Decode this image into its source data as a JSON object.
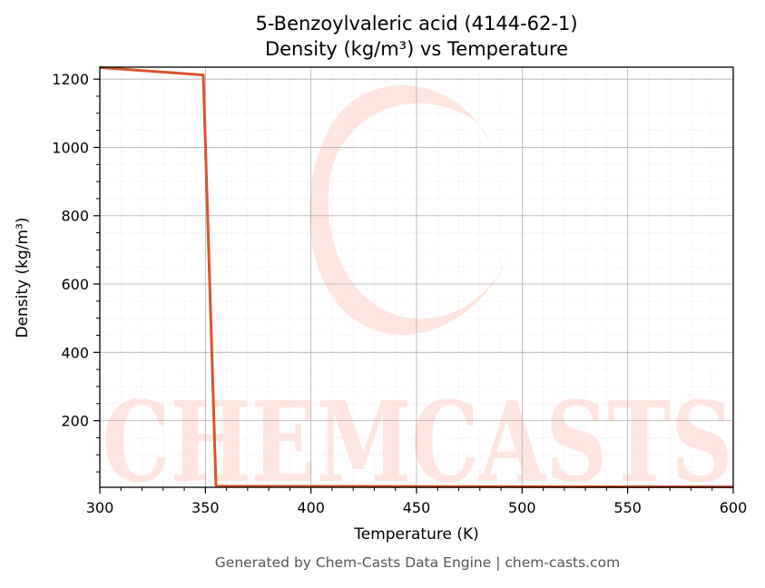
{
  "chart_data": {
    "type": "line",
    "title": "5-Benzoylvaleric acid (4144-62-1)",
    "subtitle": "Density (kg/m³) vs Temperature",
    "xlabel": "Temperature (K)",
    "ylabel": "Density (kg/m³)",
    "xlim": [
      300,
      600
    ],
    "ylim": [
      5,
      1235
    ],
    "x_ticks": [
      300,
      350,
      400,
      450,
      500,
      550,
      600
    ],
    "y_ticks": [
      200,
      400,
      600,
      800,
      1000,
      1200
    ],
    "grid": "major and minor",
    "series": [
      {
        "x": [
          300,
          349,
          355,
          356,
          600
        ],
        "y": [
          1234,
          1212,
          10,
          8,
          6
        ]
      }
    ],
    "line_color": "#d9542b",
    "watermark_color": "#ffe6e0"
  },
  "watermark": {
    "text": "CHEMCASTS"
  },
  "footer": {
    "text": "Generated by Chem-Casts Data Engine | chem-casts.com"
  }
}
